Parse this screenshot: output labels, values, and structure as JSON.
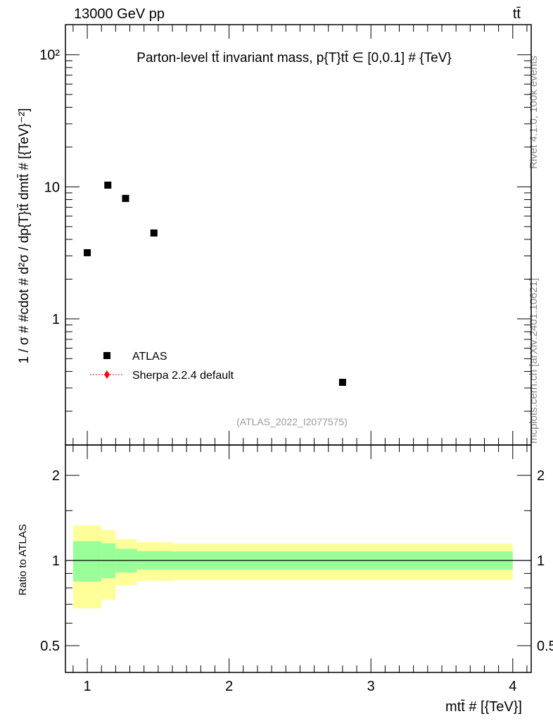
{
  "header": {
    "left": "13000 GeV pp",
    "right": "tt̄"
  },
  "side": {
    "top": "Rivet 4.1.0,  100k events",
    "bottom": "mcplots.cern.ch [arXiv:2401.10621]"
  },
  "watermark": "(ATLAS_2022_I2077575)",
  "legend": [
    {
      "label": "ATLAS"
    },
    {
      "label": "Sherpa 2.2.4 default"
    }
  ],
  "colors": {
    "data": "#000000",
    "mc": "#ff0000",
    "band_inner": "#99ff99",
    "band_outer": "#ffff99"
  },
  "chart_data": [
    {
      "type": "scatter",
      "title": "Parton-level tt̄ invariant mass, p{T}tt̄ ∈ [0,0.1] # {TeV}",
      "ylabel": "1 / σ # #cdot # d²σ / dp{T}tt̄ dmtt̄ # [{TeV}⁻²]",
      "yscale": "log",
      "ylim": [
        0.111,
        169
      ],
      "xlim": [
        0.846,
        4.13
      ],
      "yticks": [
        {
          "v": 1,
          "label": "1"
        },
        {
          "v": 10,
          "label": "10"
        },
        {
          "v": 100,
          "label": "10²"
        }
      ],
      "series": [
        {
          "name": "ATLAS",
          "x": [
            1.0,
            1.145,
            1.27,
            1.47,
            2.8
          ],
          "y": [
            3.17,
            10.3,
            8.17,
            4.47,
            0.331
          ]
        }
      ]
    },
    {
      "type": "area",
      "ylabel": "Ratio to ATLAS",
      "xlabel": "mtt̄ # [{TeV}]",
      "yscale": "log",
      "ylim": [
        0.402,
        2.56
      ],
      "xlim": [
        0.846,
        4.13
      ],
      "xticks": [
        {
          "v": 1,
          "label": "1"
        },
        {
          "v": 2,
          "label": "2"
        },
        {
          "v": 3,
          "label": "3"
        },
        {
          "v": 4,
          "label": "4"
        }
      ],
      "yticks": [
        {
          "v": 0.5,
          "label": "0.5"
        },
        {
          "v": 1,
          "label": "1"
        },
        {
          "v": 2,
          "label": "2"
        }
      ],
      "bins": [
        [
          0.9,
          1.1
        ],
        [
          1.1,
          1.2
        ],
        [
          1.2,
          1.35
        ],
        [
          1.35,
          1.6
        ],
        [
          1.6,
          4.0
        ]
      ],
      "inner_hi": [
        1.17,
        1.15,
        1.1,
        1.08,
        1.077
      ],
      "inner_lo": [
        0.842,
        0.866,
        0.907,
        0.928,
        0.928
      ],
      "outer_hi": [
        1.33,
        1.28,
        1.19,
        1.16,
        1.15
      ],
      "outer_lo": [
        0.677,
        0.726,
        0.818,
        0.847,
        0.852
      ]
    }
  ]
}
